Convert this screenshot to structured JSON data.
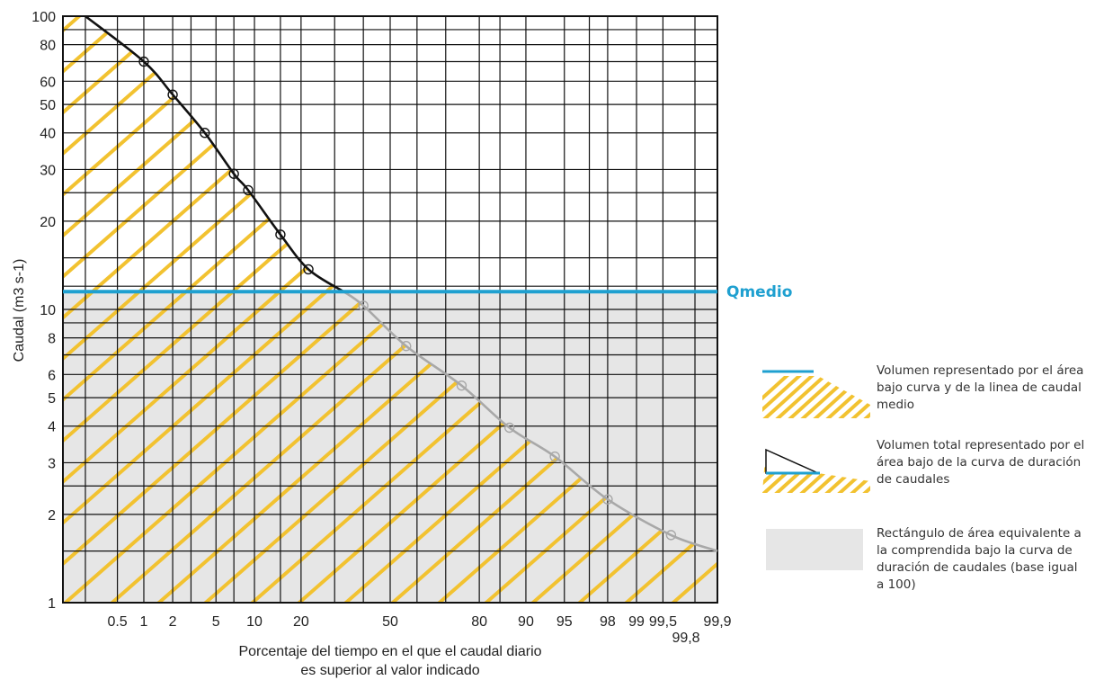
{
  "chart_data": {
    "type": "line",
    "xlabel": "Porcentaje del tiempo en el que el caudal diario es superior al valor indicado",
    "xlabel_lines": [
      "Porcentaje del tiempo en el que el caudal diario",
      "es superior al valor indicado"
    ],
    "ylabel": "Caudal (m3 s-1)",
    "y_scale": "log",
    "x_scale": "probability",
    "ylim": [
      1,
      100
    ],
    "xlim": [
      0.1,
      99.9
    ],
    "y_ticks": [
      {
        "v": 1,
        "label": "1"
      },
      {
        "v": 2,
        "label": "2"
      },
      {
        "v": 3,
        "label": "3"
      },
      {
        "v": 4,
        "label": "4"
      },
      {
        "v": 5,
        "label": "5"
      },
      {
        "v": 6,
        "label": "6"
      },
      {
        "v": 8,
        "label": "8"
      },
      {
        "v": 10,
        "label": "10"
      },
      {
        "v": 20,
        "label": "20"
      },
      {
        "v": 30,
        "label": "30"
      },
      {
        "v": 40,
        "label": "40"
      },
      {
        "v": 50,
        "label": "50"
      },
      {
        "v": 60,
        "label": "60"
      },
      {
        "v": 80,
        "label": "80"
      },
      {
        "v": 100,
        "label": "100"
      }
    ],
    "x_ticks": [
      {
        "v": 0.5,
        "label": "0.5"
      },
      {
        "v": 1,
        "label": "1"
      },
      {
        "v": 2,
        "label": "2"
      },
      {
        "v": 5,
        "label": "5"
      },
      {
        "v": 10,
        "label": "10"
      },
      {
        "v": 20,
        "label": "20"
      },
      {
        "v": 50,
        "label": "50"
      },
      {
        "v": 80,
        "label": "80"
      },
      {
        "v": 90,
        "label": "90"
      },
      {
        "v": 95,
        "label": "95"
      },
      {
        "v": 98,
        "label": "98"
      },
      {
        "v": 99,
        "label": "99"
      },
      {
        "v": 99.5,
        "label": "99,5"
      },
      {
        "v": 99.8,
        "label": "99,8"
      },
      {
        "v": 99.9,
        "label": "99,9"
      }
    ],
    "x_grid": [
      0.2,
      0.5,
      1,
      2,
      3,
      5,
      7,
      10,
      15,
      20,
      30,
      40,
      50,
      60,
      70,
      80,
      85,
      90,
      95,
      97,
      98,
      99,
      99.5,
      99.8
    ],
    "grid": true,
    "mean_flow": {
      "label": "Qmedio",
      "value": 11.5,
      "color": "#1fa0d0"
    },
    "series": [
      {
        "color": "#111111",
        "points": [
          [
            1,
            70
          ],
          [
            2,
            54
          ],
          [
            4,
            40
          ],
          [
            7,
            29
          ],
          [
            9,
            25.5
          ],
          [
            15,
            18
          ],
          [
            22,
            13.7
          ]
        ]
      },
      {
        "color": "#a8a8a8",
        "points": [
          [
            40,
            10.3
          ],
          [
            56,
            7.5
          ],
          [
            75,
            5.5
          ],
          [
            87,
            3.95
          ],
          [
            94,
            3.15
          ],
          [
            98,
            2.25
          ],
          [
            99.6,
            1.7
          ]
        ]
      }
    ],
    "curve": [
      [
        0.2,
        100
      ],
      [
        1,
        70
      ],
      [
        2,
        54
      ],
      [
        4,
        40
      ],
      [
        7,
        29
      ],
      [
        9,
        25.5
      ],
      [
        15,
        18
      ],
      [
        22,
        13.7
      ],
      [
        33,
        11.5
      ],
      [
        40,
        10.3
      ],
      [
        56,
        7.5
      ],
      [
        75,
        5.5
      ],
      [
        87,
        3.95
      ],
      [
        94,
        3.15
      ],
      [
        98,
        2.25
      ],
      [
        99.6,
        1.7
      ],
      [
        99.9,
        1.5
      ]
    ],
    "colors": {
      "hatch": "#f2c230",
      "shade": "#e6e6e6",
      "grid": "#111111",
      "mean": "#1fa0d0",
      "lower_curve": "#a8a8a8",
      "upper_curve": "#111111"
    }
  },
  "legend": [
    {
      "icon": "hatch-with-mean-line-icon",
      "text": "Volumen representado por el área bajo curva y de la linea de caudal medio"
    },
    {
      "icon": "hatch-with-triangle-icon",
      "text": "Volumen total representado por el área bajo de la curva de duración de caudales"
    },
    {
      "icon": "grey-rectangle-icon",
      "text": "Rectángulo de área equivalente a la comprendida bajo la curva de duración de caudales (base igual a 100)"
    }
  ]
}
